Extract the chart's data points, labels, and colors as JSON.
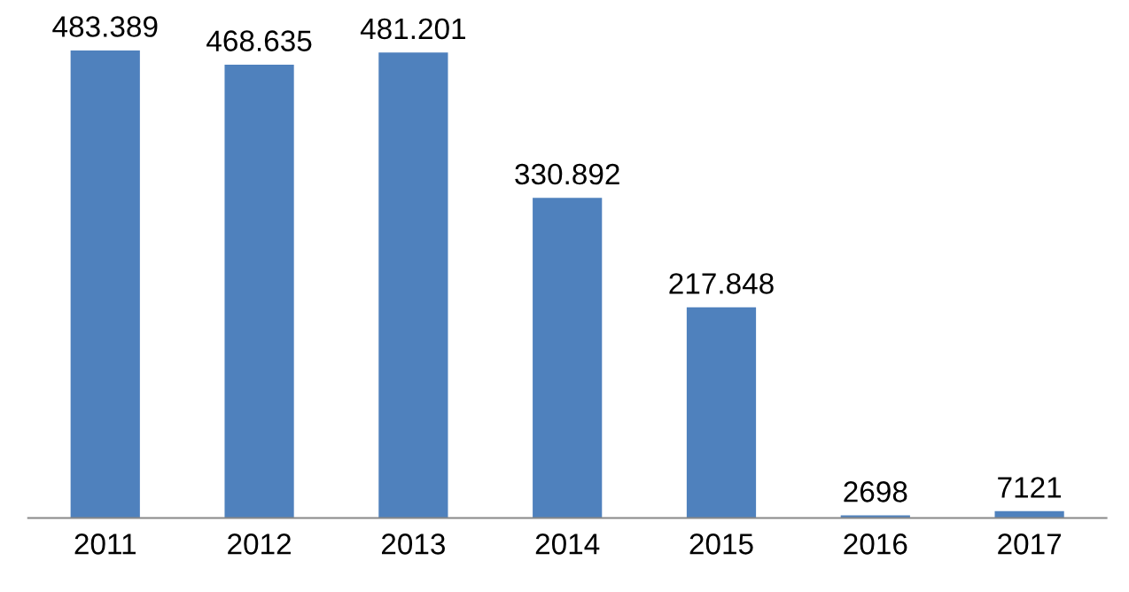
{
  "chart_data": {
    "type": "bar",
    "categories": [
      "2011",
      "2012",
      "2013",
      "2014",
      "2015",
      "2016",
      "2017"
    ],
    "values": [
      483389,
      468635,
      481201,
      330892,
      217848,
      2698,
      7121
    ],
    "value_labels": [
      "483.389",
      "468.635",
      "481.201",
      "330.892",
      "217.848",
      "2698",
      "7121"
    ],
    "color": "#4f81bd",
    "grid": false,
    "legend": false
  }
}
